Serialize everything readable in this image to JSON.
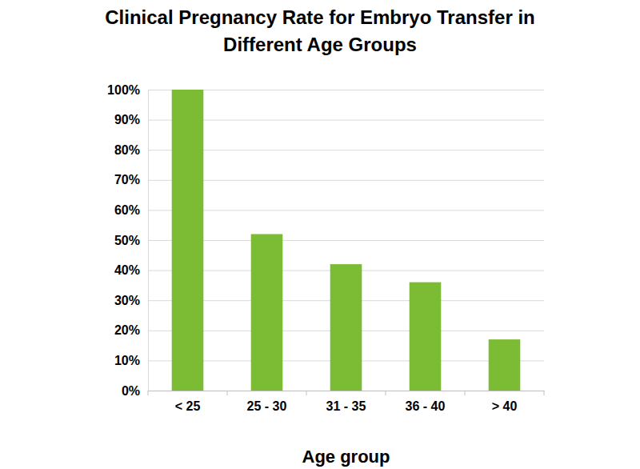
{
  "chart_data": {
    "type": "bar",
    "title": "Clinical Pregnancy Rate for Embryo Transfer in Different Age Groups",
    "x_label": "Age group",
    "categories": [
      "< 25",
      "25 - 30",
      "31 - 35",
      "36 - 40",
      "> 40"
    ],
    "values": [
      100,
      52,
      42,
      36,
      17
    ],
    "color": "#7cbc35",
    "ylim": [
      0,
      100
    ],
    "yticks": [
      {
        "value": 0,
        "label": "0%"
      },
      {
        "value": 10,
        "label": "10%"
      },
      {
        "value": 20,
        "label": "20%"
      },
      {
        "value": 30,
        "label": "30%"
      },
      {
        "value": 40,
        "label": "40%"
      },
      {
        "value": 50,
        "label": "50%"
      },
      {
        "value": 60,
        "label": "60%"
      },
      {
        "value": 70,
        "label": "70%"
      },
      {
        "value": 80,
        "label": "80%"
      },
      {
        "value": 90,
        "label": "90%"
      },
      {
        "value": 100,
        "label": "100%"
      }
    ],
    "grid": true
  }
}
